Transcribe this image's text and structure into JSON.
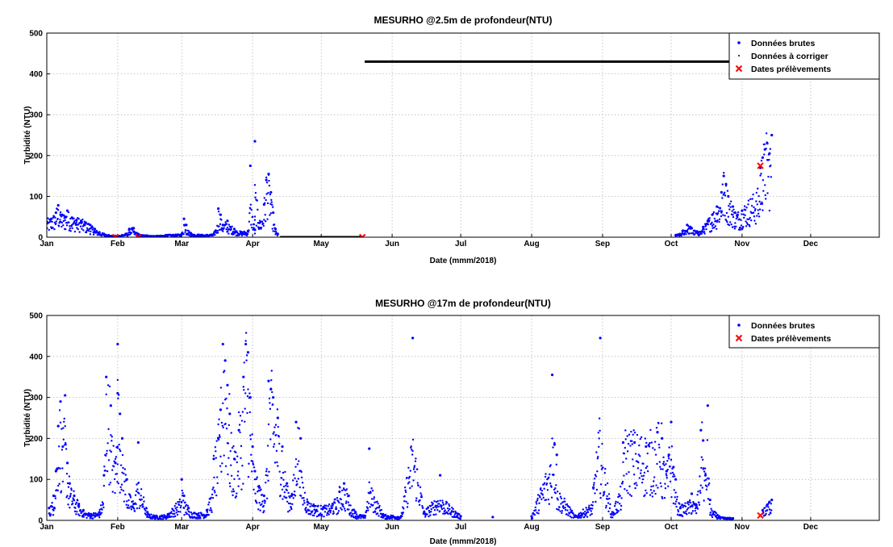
{
  "chart_data": [
    {
      "type": "scatter",
      "title": "MESURHO @2.5m de profondeur(NTU)",
      "xlabel": "Date (mmm/2018)",
      "ylabel": "Turbidité (NTU)",
      "xlim": [
        "2018-01-01",
        "2018-12-31"
      ],
      "ylim": [
        0,
        500
      ],
      "x_ticks": [
        "Jan",
        "Feb",
        "Mar",
        "Apr",
        "May",
        "Jun",
        "Jul",
        "Aug",
        "Sep",
        "Oct",
        "Nov",
        "Dec"
      ],
      "y_ticks": [
        "0",
        "100",
        "200",
        "300",
        "400",
        "500"
      ],
      "grid": true,
      "legend_position": "top-right",
      "legend": [
        "Données brutes",
        "Données à corriger",
        "Dates prélèvements"
      ],
      "series": [
        {
          "name": "Données brutes",
          "color": "#0000ff",
          "marker": "dot",
          "points": [
            [
              "2018-01-01",
              38
            ],
            [
              "2018-01-03",
              45
            ],
            [
              "2018-01-05",
              60
            ],
            [
              "2018-01-06",
              78
            ],
            [
              "2018-01-07",
              55
            ],
            [
              "2018-01-09",
              50
            ],
            [
              "2018-01-10",
              65
            ],
            [
              "2018-01-12",
              48
            ],
            [
              "2018-01-14",
              42
            ],
            [
              "2018-01-16",
              40
            ],
            [
              "2018-01-18",
              35
            ],
            [
              "2018-01-20",
              30
            ],
            [
              "2018-01-22",
              20
            ],
            [
              "2018-01-24",
              12
            ],
            [
              "2018-01-26",
              8
            ],
            [
              "2018-01-28",
              5
            ],
            [
              "2018-01-30",
              3
            ],
            [
              "2018-02-03",
              5
            ],
            [
              "2018-02-06",
              18
            ],
            [
              "2018-02-08",
              22
            ],
            [
              "2018-02-10",
              8
            ],
            [
              "2018-02-14",
              4
            ],
            [
              "2018-02-18",
              3
            ],
            [
              "2018-02-22",
              5
            ],
            [
              "2018-03-01",
              8
            ],
            [
              "2018-03-02",
              45
            ],
            [
              "2018-03-03",
              30
            ],
            [
              "2018-03-05",
              10
            ],
            [
              "2018-03-10",
              5
            ],
            [
              "2018-03-15",
              8
            ],
            [
              "2018-03-17",
              70
            ],
            [
              "2018-03-18",
              55
            ],
            [
              "2018-03-19",
              30
            ],
            [
              "2018-03-21",
              40
            ],
            [
              "2018-03-24",
              20
            ],
            [
              "2018-03-27",
              12
            ],
            [
              "2018-03-30",
              15
            ],
            [
              "2018-04-02",
              18
            ],
            [
              "2018-04-04",
              35
            ],
            [
              "2018-04-06",
              80
            ],
            [
              "2018-04-07",
              140
            ],
            [
              "2018-04-08",
              155
            ],
            [
              "2018-04-09",
              110
            ],
            [
              "2018-04-10",
              60
            ],
            [
              "2018-04-11",
              20
            ],
            [
              "2018-04-12",
              8
            ],
            [
              "2018-03-31",
              175
            ],
            [
              "2018-04-02",
              235
            ],
            [
              "2018-10-03",
              5
            ],
            [
              "2018-10-06",
              15
            ],
            [
              "2018-10-08",
              30
            ],
            [
              "2018-10-10",
              22
            ],
            [
              "2018-10-13",
              12
            ],
            [
              "2018-10-15",
              25
            ],
            [
              "2018-10-17",
              40
            ],
            [
              "2018-10-19",
              55
            ],
            [
              "2018-10-21",
              75
            ],
            [
              "2018-10-23",
              110
            ],
            [
              "2018-10-24",
              150
            ],
            [
              "2018-10-25",
              130
            ],
            [
              "2018-10-26",
              100
            ],
            [
              "2018-10-28",
              75
            ],
            [
              "2018-10-29",
              60
            ],
            [
              "2018-10-30",
              55
            ],
            [
              "2018-11-01",
              65
            ],
            [
              "2018-11-09",
              170
            ],
            [
              "2018-11-10",
              195
            ],
            [
              "2018-11-11",
              215
            ],
            [
              "2018-11-12",
              230
            ],
            [
              "2018-11-13",
              205
            ],
            [
              "2018-11-14",
              250
            ]
          ]
        },
        {
          "name": "Données à corriger",
          "color": "#000000",
          "marker": "line",
          "segments": [
            [
              [
                "2018-04-13",
                0
              ],
              [
                "2018-05-19",
                0
              ]
            ],
            [
              [
                "2018-05-20",
                430
              ],
              [
                "2018-11-08",
                430
              ]
            ]
          ]
        },
        {
          "name": "Dates prélèvements",
          "color": "#ff0000",
          "marker": "x",
          "points": [
            [
              "2018-01-31",
              0
            ],
            [
              "2018-02-10",
              0
            ],
            [
              "2018-05-19",
              0
            ],
            [
              "2018-11-09",
              175
            ]
          ]
        }
      ]
    },
    {
      "type": "scatter",
      "title": "MESURHO @17m de profondeur(NTU)",
      "xlabel": "Date (mmm/2018)",
      "ylabel": "Turbidité (NTU)",
      "xlim": [
        "2018-01-01",
        "2018-12-31"
      ],
      "ylim": [
        0,
        500
      ],
      "x_ticks": [
        "Jan",
        "Feb",
        "Mar",
        "Apr",
        "May",
        "Jun",
        "Jul",
        "Aug",
        "Sep",
        "Oct",
        "Nov",
        "Dec"
      ],
      "y_ticks": [
        "0",
        "100",
        "200",
        "300",
        "400",
        "500"
      ],
      "grid": true,
      "legend_position": "top-right",
      "legend": [
        "Données brutes",
        "Dates prélèvements"
      ],
      "series": [
        {
          "name": "Données brutes",
          "color": "#0000ff",
          "marker": "dot",
          "points": [
            [
              "2018-01-02",
              30
            ],
            [
              "2018-01-04",
              60
            ],
            [
              "2018-01-05",
              120
            ],
            [
              "2018-01-06",
              230
            ],
            [
              "2018-01-07",
              290
            ],
            [
              "2018-01-08",
              180
            ],
            [
              "2018-01-09",
              305
            ],
            [
              "2018-01-10",
              140
            ],
            [
              "2018-01-11",
              90
            ],
            [
              "2018-01-13",
              60
            ],
            [
              "2018-01-15",
              40
            ],
            [
              "2018-01-17",
              25
            ],
            [
              "2018-01-20",
              15
            ],
            [
              "2018-01-24",
              20
            ],
            [
              "2018-01-26",
              110
            ],
            [
              "2018-01-27",
              350
            ],
            [
              "2018-01-29",
              280
            ],
            [
              "2018-01-31",
              140
            ],
            [
              "2018-02-01",
              430
            ],
            [
              "2018-02-01",
              310
            ],
            [
              "2018-02-02",
              260
            ],
            [
              "2018-02-03",
              200
            ],
            [
              "2018-02-05",
              100
            ],
            [
              "2018-02-08",
              40
            ],
            [
              "2018-02-10",
              190
            ],
            [
              "2018-02-14",
              20
            ],
            [
              "2018-02-18",
              10
            ],
            [
              "2018-02-23",
              15
            ],
            [
              "2018-03-01",
              100
            ],
            [
              "2018-03-02",
              60
            ],
            [
              "2018-03-04",
              30
            ],
            [
              "2018-03-08",
              15
            ],
            [
              "2018-03-12",
              25
            ],
            [
              "2018-03-15",
              150
            ],
            [
              "2018-03-17",
              200
            ],
            [
              "2018-03-18",
              270
            ],
            [
              "2018-03-19",
              430
            ],
            [
              "2018-03-20",
              390
            ],
            [
              "2018-03-21",
              330
            ],
            [
              "2018-03-22",
              260
            ],
            [
              "2018-03-24",
              150
            ],
            [
              "2018-03-26",
              220
            ],
            [
              "2018-03-28",
              350
            ],
            [
              "2018-03-29",
              430
            ],
            [
              "2018-03-30",
              410
            ],
            [
              "2018-03-31",
              300
            ],
            [
              "2018-04-01",
              180
            ],
            [
              "2018-04-02",
              120
            ],
            [
              "2018-04-04",
              80
            ],
            [
              "2018-04-06",
              60
            ],
            [
              "2018-04-08",
              340
            ],
            [
              "2018-04-09",
              320
            ],
            [
              "2018-04-10",
              300
            ],
            [
              "2018-04-12",
              250
            ],
            [
              "2018-04-14",
              180
            ],
            [
              "2018-04-16",
              90
            ],
            [
              "2018-04-18",
              60
            ],
            [
              "2018-04-20",
              240
            ],
            [
              "2018-04-22",
              200
            ],
            [
              "2018-04-25",
              45
            ],
            [
              "2018-04-28",
              35
            ],
            [
              "2018-05-02",
              30
            ],
            [
              "2018-05-06",
              40
            ],
            [
              "2018-05-09",
              70
            ],
            [
              "2018-05-11",
              90
            ],
            [
              "2018-05-13",
              60
            ],
            [
              "2018-05-16",
              20
            ],
            [
              "2018-05-20",
              10
            ],
            [
              "2018-05-22",
              175
            ],
            [
              "2018-05-28",
              15
            ],
            [
              "2018-06-05",
              10
            ],
            [
              "2018-06-10",
              445
            ],
            [
              "2018-06-15",
              20
            ],
            [
              "2018-06-22",
              110
            ],
            [
              "2018-07-01",
              10
            ],
            [
              "2018-07-15",
              8
            ],
            [
              "2018-08-01",
              10
            ],
            [
              "2018-08-10",
              355
            ],
            [
              "2018-08-11",
              185
            ],
            [
              "2018-08-12",
              160
            ],
            [
              "2018-08-20",
              10
            ],
            [
              "2018-08-28",
              80
            ],
            [
              "2018-08-31",
              445
            ],
            [
              "2018-09-05",
              15
            ],
            [
              "2018-09-10",
              190
            ],
            [
              "2018-09-15",
              190
            ],
            [
              "2018-09-20",
              180
            ],
            [
              "2018-09-25",
              215
            ],
            [
              "2018-09-27",
              200
            ],
            [
              "2018-09-29",
              120
            ],
            [
              "2018-09-30",
              160
            ],
            [
              "2018-10-01",
              240
            ],
            [
              "2018-10-02",
              130
            ],
            [
              "2018-10-03",
              100
            ],
            [
              "2018-10-05",
              30
            ],
            [
              "2018-10-10",
              65
            ],
            [
              "2018-10-12",
              35
            ],
            [
              "2018-10-14",
              220
            ],
            [
              "2018-10-15",
              195
            ],
            [
              "2018-10-16",
              110
            ],
            [
              "2018-10-17",
              280
            ],
            [
              "2018-10-18",
              50
            ],
            [
              "2018-10-22",
              10
            ],
            [
              "2018-10-28",
              5
            ],
            [
              "2018-11-10",
              25
            ],
            [
              "2018-11-12",
              38
            ],
            [
              "2018-11-13",
              45
            ],
            [
              "2018-11-14",
              50
            ]
          ]
        },
        {
          "name": "Dates prélèvements",
          "color": "#ff0000",
          "marker": "x",
          "points": [
            [
              "2018-11-09",
              12
            ]
          ]
        }
      ]
    }
  ]
}
